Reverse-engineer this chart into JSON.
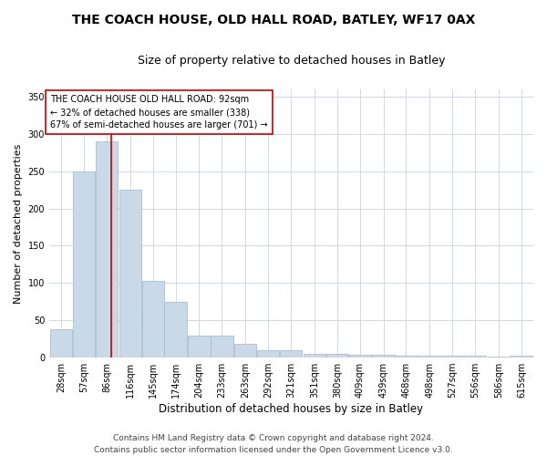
{
  "title": "THE COACH HOUSE, OLD HALL ROAD, BATLEY, WF17 0AX",
  "subtitle": "Size of property relative to detached houses in Batley",
  "xlabel": "Distribution of detached houses by size in Batley",
  "ylabel": "Number of detached properties",
  "bin_labels": [
    "28sqm",
    "57sqm",
    "86sqm",
    "116sqm",
    "145sqm",
    "174sqm",
    "204sqm",
    "233sqm",
    "263sqm",
    "292sqm",
    "321sqm",
    "351sqm",
    "380sqm",
    "409sqm",
    "439sqm",
    "468sqm",
    "498sqm",
    "527sqm",
    "556sqm",
    "586sqm",
    "615sqm"
  ],
  "bin_centers": [
    28,
    57,
    86,
    116,
    145,
    174,
    204,
    233,
    263,
    292,
    321,
    351,
    380,
    409,
    439,
    468,
    498,
    527,
    556,
    586,
    615
  ],
  "bin_width": 29,
  "bar_heights": [
    38,
    250,
    290,
    225,
    103,
    75,
    29,
    29,
    18,
    10,
    10,
    5,
    5,
    4,
    4,
    3,
    2,
    2,
    2,
    1,
    3
  ],
  "bar_facecolor": "#c9d9e8",
  "bar_edgecolor": "#a8bfd0",
  "property_size": 92,
  "vline_color": "#cc0000",
  "annotation_text": "THE COACH HOUSE OLD HALL ROAD: 92sqm\n← 32% of detached houses are smaller (338)\n67% of semi-detached houses are larger (701) →",
  "annotation_box_edgecolor": "#cc0000",
  "annotation_box_facecolor": "#ffffff",
  "grid_color": "#d0d8e8",
  "ylim": [
    0,
    360
  ],
  "yticks": [
    0,
    50,
    100,
    150,
    200,
    250,
    300,
    350
  ],
  "footer_line1": "Contains HM Land Registry data © Crown copyright and database right 2024.",
  "footer_line2": "Contains public sector information licensed under the Open Government Licence v3.0.",
  "title_fontsize": 10,
  "subtitle_fontsize": 9,
  "xlabel_fontsize": 8.5,
  "ylabel_fontsize": 8,
  "tick_fontsize": 7,
  "annotation_fontsize": 7,
  "footer_fontsize": 6.5
}
